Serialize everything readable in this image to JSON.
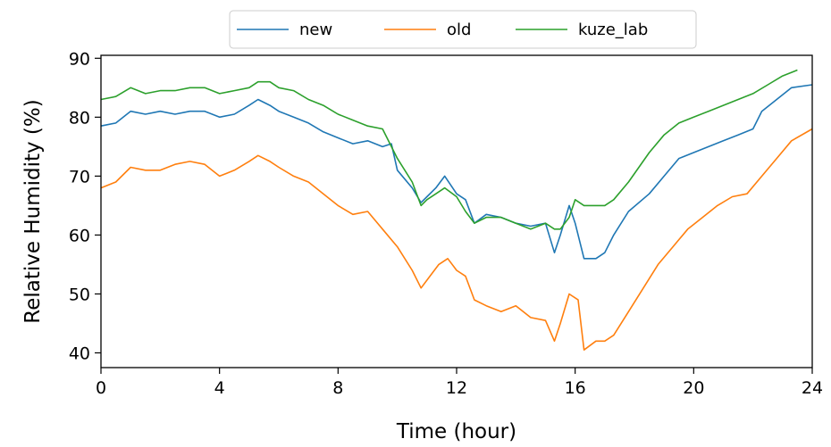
{
  "chart_data": {
    "type": "line",
    "xlabel": "Time (hour)",
    "ylabel": "Relative Humidity (%)",
    "xlim": [
      0,
      24
    ],
    "ylim": [
      37.5,
      90.5
    ],
    "xticks": [
      0,
      4,
      8,
      12,
      16,
      20,
      24
    ],
    "yticks": [
      40,
      50,
      60,
      70,
      80,
      90
    ],
    "grid": false,
    "legend_position": "top-center",
    "series": [
      {
        "name": "new",
        "color": "#1f77b4",
        "points": [
          [
            0,
            78.5
          ],
          [
            0.5,
            79
          ],
          [
            1,
            81
          ],
          [
            1.5,
            80.5
          ],
          [
            2,
            81
          ],
          [
            2.5,
            80.5
          ],
          [
            3,
            81
          ],
          [
            3.5,
            81
          ],
          [
            4,
            80
          ],
          [
            4.5,
            80.5
          ],
          [
            5,
            82
          ],
          [
            5.3,
            83
          ],
          [
            5.7,
            82
          ],
          [
            6,
            81
          ],
          [
            6.5,
            80
          ],
          [
            7,
            79
          ],
          [
            7.5,
            77.5
          ],
          [
            8,
            76.5
          ],
          [
            8.5,
            75.5
          ],
          [
            9,
            76
          ],
          [
            9.5,
            75
          ],
          [
            9.8,
            75.5
          ],
          [
            10,
            71
          ],
          [
            10.5,
            68
          ],
          [
            10.8,
            65.5
          ],
          [
            11,
            66.5
          ],
          [
            11.3,
            68
          ],
          [
            11.6,
            70
          ],
          [
            12,
            67
          ],
          [
            12.3,
            66
          ],
          [
            12.6,
            62
          ],
          [
            13,
            63.5
          ],
          [
            13.5,
            63
          ],
          [
            14,
            62
          ],
          [
            14.5,
            61.5
          ],
          [
            15,
            62
          ],
          [
            15.3,
            57
          ],
          [
            15.5,
            60
          ],
          [
            15.8,
            65
          ],
          [
            16,
            62
          ],
          [
            16.3,
            56
          ],
          [
            16.7,
            56
          ],
          [
            17,
            57
          ],
          [
            17.3,
            60
          ],
          [
            17.8,
            64
          ],
          [
            18.5,
            67
          ],
          [
            19,
            70
          ],
          [
            19.5,
            73
          ],
          [
            20,
            74
          ],
          [
            20.5,
            75
          ],
          [
            21,
            76
          ],
          [
            21.5,
            77
          ],
          [
            22,
            78
          ],
          [
            22.3,
            81
          ],
          [
            22.8,
            83
          ],
          [
            23.3,
            85
          ],
          [
            24,
            85.5
          ]
        ]
      },
      {
        "name": "old",
        "color": "#ff7f0e",
        "points": [
          [
            0,
            68
          ],
          [
            0.5,
            69
          ],
          [
            1,
            71.5
          ],
          [
            1.5,
            71
          ],
          [
            2,
            71
          ],
          [
            2.5,
            72
          ],
          [
            3,
            72.5
          ],
          [
            3.5,
            72
          ],
          [
            4,
            70
          ],
          [
            4.5,
            71
          ],
          [
            5,
            72.5
          ],
          [
            5.3,
            73.5
          ],
          [
            5.7,
            72.5
          ],
          [
            6,
            71.5
          ],
          [
            6.5,
            70
          ],
          [
            7,
            69
          ],
          [
            7.5,
            67
          ],
          [
            8,
            65
          ],
          [
            8.5,
            63.5
          ],
          [
            9,
            64
          ],
          [
            9.5,
            61
          ],
          [
            10,
            58
          ],
          [
            10.5,
            54
          ],
          [
            10.8,
            51
          ],
          [
            11.1,
            53
          ],
          [
            11.4,
            55
          ],
          [
            11.7,
            56
          ],
          [
            12,
            54
          ],
          [
            12.3,
            53
          ],
          [
            12.6,
            49
          ],
          [
            13,
            48
          ],
          [
            13.5,
            47
          ],
          [
            14,
            48
          ],
          [
            14.5,
            46
          ],
          [
            15,
            45.5
          ],
          [
            15.3,
            42
          ],
          [
            15.5,
            45
          ],
          [
            15.8,
            50
          ],
          [
            16.1,
            49
          ],
          [
            16.3,
            40.5
          ],
          [
            16.7,
            42
          ],
          [
            17,
            42
          ],
          [
            17.3,
            43
          ],
          [
            17.8,
            47
          ],
          [
            18.3,
            51
          ],
          [
            18.8,
            55
          ],
          [
            19.3,
            58
          ],
          [
            19.8,
            61
          ],
          [
            20.3,
            63
          ],
          [
            20.8,
            65
          ],
          [
            21.3,
            66.5
          ],
          [
            21.8,
            67
          ],
          [
            22.3,
            70
          ],
          [
            22.8,
            73
          ],
          [
            23.3,
            76
          ],
          [
            24,
            78
          ]
        ]
      },
      {
        "name": "kuze_lab",
        "color": "#2ca02c",
        "points": [
          [
            0,
            83
          ],
          [
            0.5,
            83.5
          ],
          [
            1,
            85
          ],
          [
            1.5,
            84
          ],
          [
            2,
            84.5
          ],
          [
            2.5,
            84.5
          ],
          [
            3,
            85
          ],
          [
            3.5,
            85
          ],
          [
            4,
            84
          ],
          [
            4.5,
            84.5
          ],
          [
            5,
            85
          ],
          [
            5.3,
            86
          ],
          [
            5.7,
            86
          ],
          [
            6,
            85
          ],
          [
            6.5,
            84.5
          ],
          [
            7,
            83
          ],
          [
            7.5,
            82
          ],
          [
            8,
            80.5
          ],
          [
            8.5,
            79.5
          ],
          [
            9,
            78.5
          ],
          [
            9.5,
            78
          ],
          [
            10,
            73
          ],
          [
            10.5,
            69
          ],
          [
            10.8,
            65
          ],
          [
            11,
            66
          ],
          [
            11.3,
            67
          ],
          [
            11.6,
            68
          ],
          [
            12,
            66.5
          ],
          [
            12.3,
            64
          ],
          [
            12.6,
            62
          ],
          [
            13,
            63
          ],
          [
            13.5,
            63
          ],
          [
            14,
            62
          ],
          [
            14.5,
            61
          ],
          [
            15,
            62
          ],
          [
            15.3,
            61
          ],
          [
            15.5,
            61
          ],
          [
            15.8,
            63
          ],
          [
            16,
            66
          ],
          [
            16.3,
            65
          ],
          [
            16.7,
            65
          ],
          [
            17,
            65
          ],
          [
            17.3,
            66
          ],
          [
            17.8,
            69
          ],
          [
            18.5,
            74
          ],
          [
            19,
            77
          ],
          [
            19.5,
            79
          ],
          [
            20,
            80
          ],
          [
            20.5,
            81
          ],
          [
            21,
            82
          ],
          [
            21.5,
            83
          ],
          [
            22,
            84
          ],
          [
            22.5,
            85.5
          ],
          [
            23,
            87
          ],
          [
            23.5,
            88
          ]
        ]
      }
    ]
  }
}
